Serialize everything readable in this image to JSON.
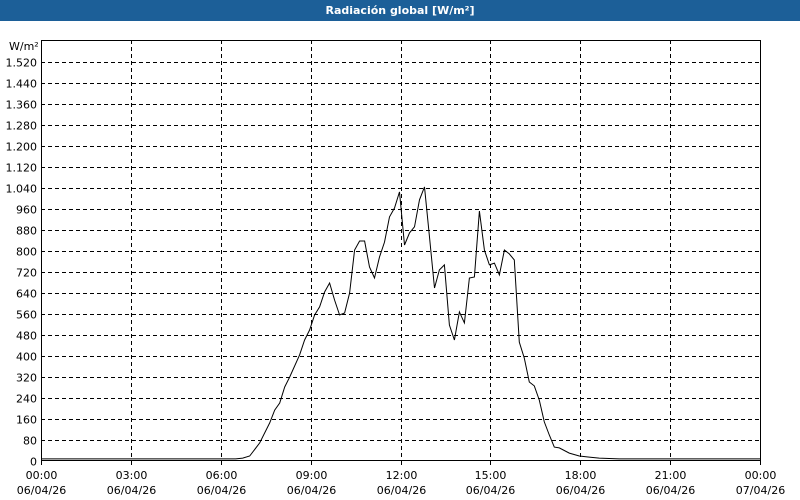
{
  "chart_data": {
    "type": "line",
    "title": "Radiación global [W/m²]",
    "ylabel": "W/m²",
    "ylim": [
      0,
      1520
    ],
    "yticks": [
      0,
      80,
      160,
      240,
      320,
      400,
      480,
      560,
      640,
      720,
      800,
      880,
      960,
      1040,
      1120,
      1200,
      1280,
      1360,
      1440,
      1520
    ],
    "ytick_labels": [
      "0",
      "80",
      "160",
      "240",
      "320",
      "400",
      "480",
      "560",
      "640",
      "720",
      "800",
      "880",
      "960",
      "1.040",
      "1.120",
      "1.200",
      "1.280",
      "1.360",
      "1.440",
      "1.520"
    ],
    "xlim": [
      "06/04/26 00:00",
      "07/04/26 00:00"
    ],
    "xticks": [
      {
        "time": "00:00",
        "date": "06/04/26"
      },
      {
        "time": "03:00",
        "date": "06/04/26"
      },
      {
        "time": "06:00",
        "date": "06/04/26"
      },
      {
        "time": "09:00",
        "date": "06/04/26"
      },
      {
        "time": "12:00",
        "date": "06/04/26"
      },
      {
        "time": "15:00",
        "date": "06/04/26"
      },
      {
        "time": "18:00",
        "date": "06/04/26"
      },
      {
        "time": "21:00",
        "date": "06/04/26"
      },
      {
        "time": "00:00",
        "date": "07/04/26"
      }
    ],
    "grid": true,
    "line_color": "#000000",
    "series": [
      {
        "points": [
          [
            "06/04/26 00:00",
            8
          ],
          [
            "06/04/26 06:30",
            8
          ],
          [
            "06/04/26 06:44",
            11
          ],
          [
            "06/04/26 06:58",
            19
          ],
          [
            "06/04/26 07:18",
            69
          ],
          [
            "06/04/26 07:38",
            145
          ],
          [
            "06/04/26 07:48",
            194
          ],
          [
            "06/04/26 07:58",
            221
          ],
          [
            "06/04/26 08:08",
            282
          ],
          [
            "06/04/26 08:18",
            320
          ],
          [
            "06/04/26 08:38",
            404
          ],
          [
            "06/04/26 08:48",
            461
          ],
          [
            "06/04/26 08:58",
            499
          ],
          [
            "06/04/26 09:08",
            556
          ],
          [
            "06/04/26 09:18",
            587
          ],
          [
            "06/04/26 09:28",
            644
          ],
          [
            "06/04/26 09:38",
            678
          ],
          [
            "06/04/26 09:48",
            613
          ],
          [
            "06/04/26 09:58",
            556
          ],
          [
            "06/04/26 10:08",
            564
          ],
          [
            "06/04/26 10:18",
            640
          ],
          [
            "06/04/26 10:28",
            804
          ],
          [
            "06/04/26 10:38",
            838
          ],
          [
            "06/04/26 10:48",
            838
          ],
          [
            "06/04/26 10:58",
            739
          ],
          [
            "06/04/26 11:08",
            697
          ],
          [
            "06/04/26 11:18",
            777
          ],
          [
            "06/04/26 11:28",
            834
          ],
          [
            "06/04/26 11:38",
            930
          ],
          [
            "06/04/26 11:48",
            964
          ],
          [
            "06/04/26 11:58",
            1025
          ],
          [
            "06/04/26 12:08",
            823
          ],
          [
            "06/04/26 12:18",
            869
          ],
          [
            "06/04/26 12:28",
            892
          ],
          [
            "06/04/26 12:38",
            995
          ],
          [
            "06/04/26 12:48",
            1044
          ],
          [
            "06/04/26 12:58",
            853
          ],
          [
            "06/04/26 13:08",
            659
          ],
          [
            "06/04/26 13:18",
            728
          ],
          [
            "06/04/26 13:28",
            747
          ],
          [
            "06/04/26 13:38",
            518
          ],
          [
            "06/04/26 13:48",
            461
          ],
          [
            "06/04/26 13:58",
            568
          ],
          [
            "06/04/26 14:08",
            526
          ],
          [
            "06/04/26 14:18",
            697
          ],
          [
            "06/04/26 14:28",
            701
          ],
          [
            "06/04/26 14:38",
            952
          ],
          [
            "06/04/26 14:48",
            804
          ],
          [
            "06/04/26 14:58",
            747
          ],
          [
            "06/04/26 15:08",
            754
          ],
          [
            "06/04/26 15:18",
            709
          ],
          [
            "06/04/26 15:28",
            804
          ],
          [
            "06/04/26 15:38",
            789
          ],
          [
            "06/04/26 15:48",
            766
          ],
          [
            "06/04/26 15:58",
            453
          ],
          [
            "06/04/26 16:08",
            392
          ],
          [
            "06/04/26 16:18",
            301
          ],
          [
            "06/04/26 16:28",
            286
          ],
          [
            "06/04/26 16:38",
            232
          ],
          [
            "06/04/26 16:48",
            149
          ],
          [
            "06/04/26 16:58",
            99
          ],
          [
            "06/04/26 17:08",
            53
          ],
          [
            "06/04/26 17:18",
            50
          ],
          [
            "06/04/26 17:38",
            30
          ],
          [
            "06/04/26 17:58",
            19
          ],
          [
            "06/04/26 18:18",
            15
          ],
          [
            "06/04/26 18:38",
            11
          ],
          [
            "06/04/26 19:18",
            8
          ],
          [
            "07/04/26 00:00",
            8
          ]
        ]
      }
    ]
  }
}
